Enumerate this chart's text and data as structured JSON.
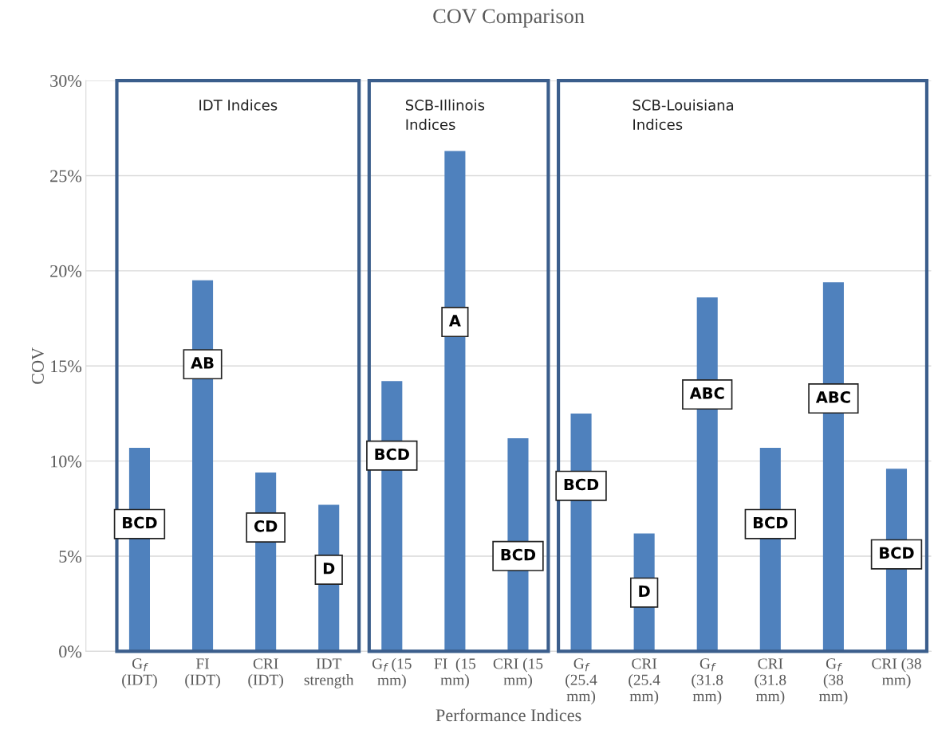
{
  "chart_data": {
    "type": "bar",
    "title": "COV Comparison",
    "xlabel": "Performance Indices",
    "ylabel": "COV",
    "categories": [
      "G$_{f}$\n(IDT)",
      "FI\n(IDT)",
      "CRI\n(IDT)",
      "IDT\nstrength",
      "G$_{f}$ (15\nmm)",
      "FI  (15\nmm)",
      "CRI (15\nmm)",
      "G$_{f}$\n(25.4\nmm)",
      "CRI\n(25.4\nmm)",
      "G$_{f}$\n(31.8\nmm)",
      "CRI\n(31.8\nmm)",
      "G$_{f}$\n(38\nmm)",
      "CRI (38\nmm)"
    ],
    "series": [
      {
        "color": "#4f81bd",
        "values": [
          10.7,
          19.5,
          9.4,
          7.7,
          14.2,
          26.3,
          11.2,
          12.5,
          6.2,
          18.6,
          10.7,
          19.4,
          9.6
        ]
      }
    ],
    "ylim": [
      0,
      30
    ],
    "yticks": [
      {
        "value": 0,
        "label": "0%"
      },
      {
        "value": 5,
        "label": "5%"
      },
      {
        "value": 10,
        "label": "10%"
      },
      {
        "value": 15,
        "label": "15%"
      },
      {
        "value": 20,
        "label": "20%"
      },
      {
        "value": 25,
        "label": "25%"
      },
      {
        "value": 30,
        "label": "30%"
      }
    ],
    "grid": "y",
    "annotations": [
      "BCD",
      "AB",
      "CD",
      "D",
      "BCD",
      "A",
      "BCD",
      "BCD",
      "D",
      "ABC",
      "BCD",
      "ABC",
      "BCD",
      "IDT Indices",
      "SCB-Illinois\nIndices",
      "SCB-Louisiana\nIndices"
    ]
  }
}
